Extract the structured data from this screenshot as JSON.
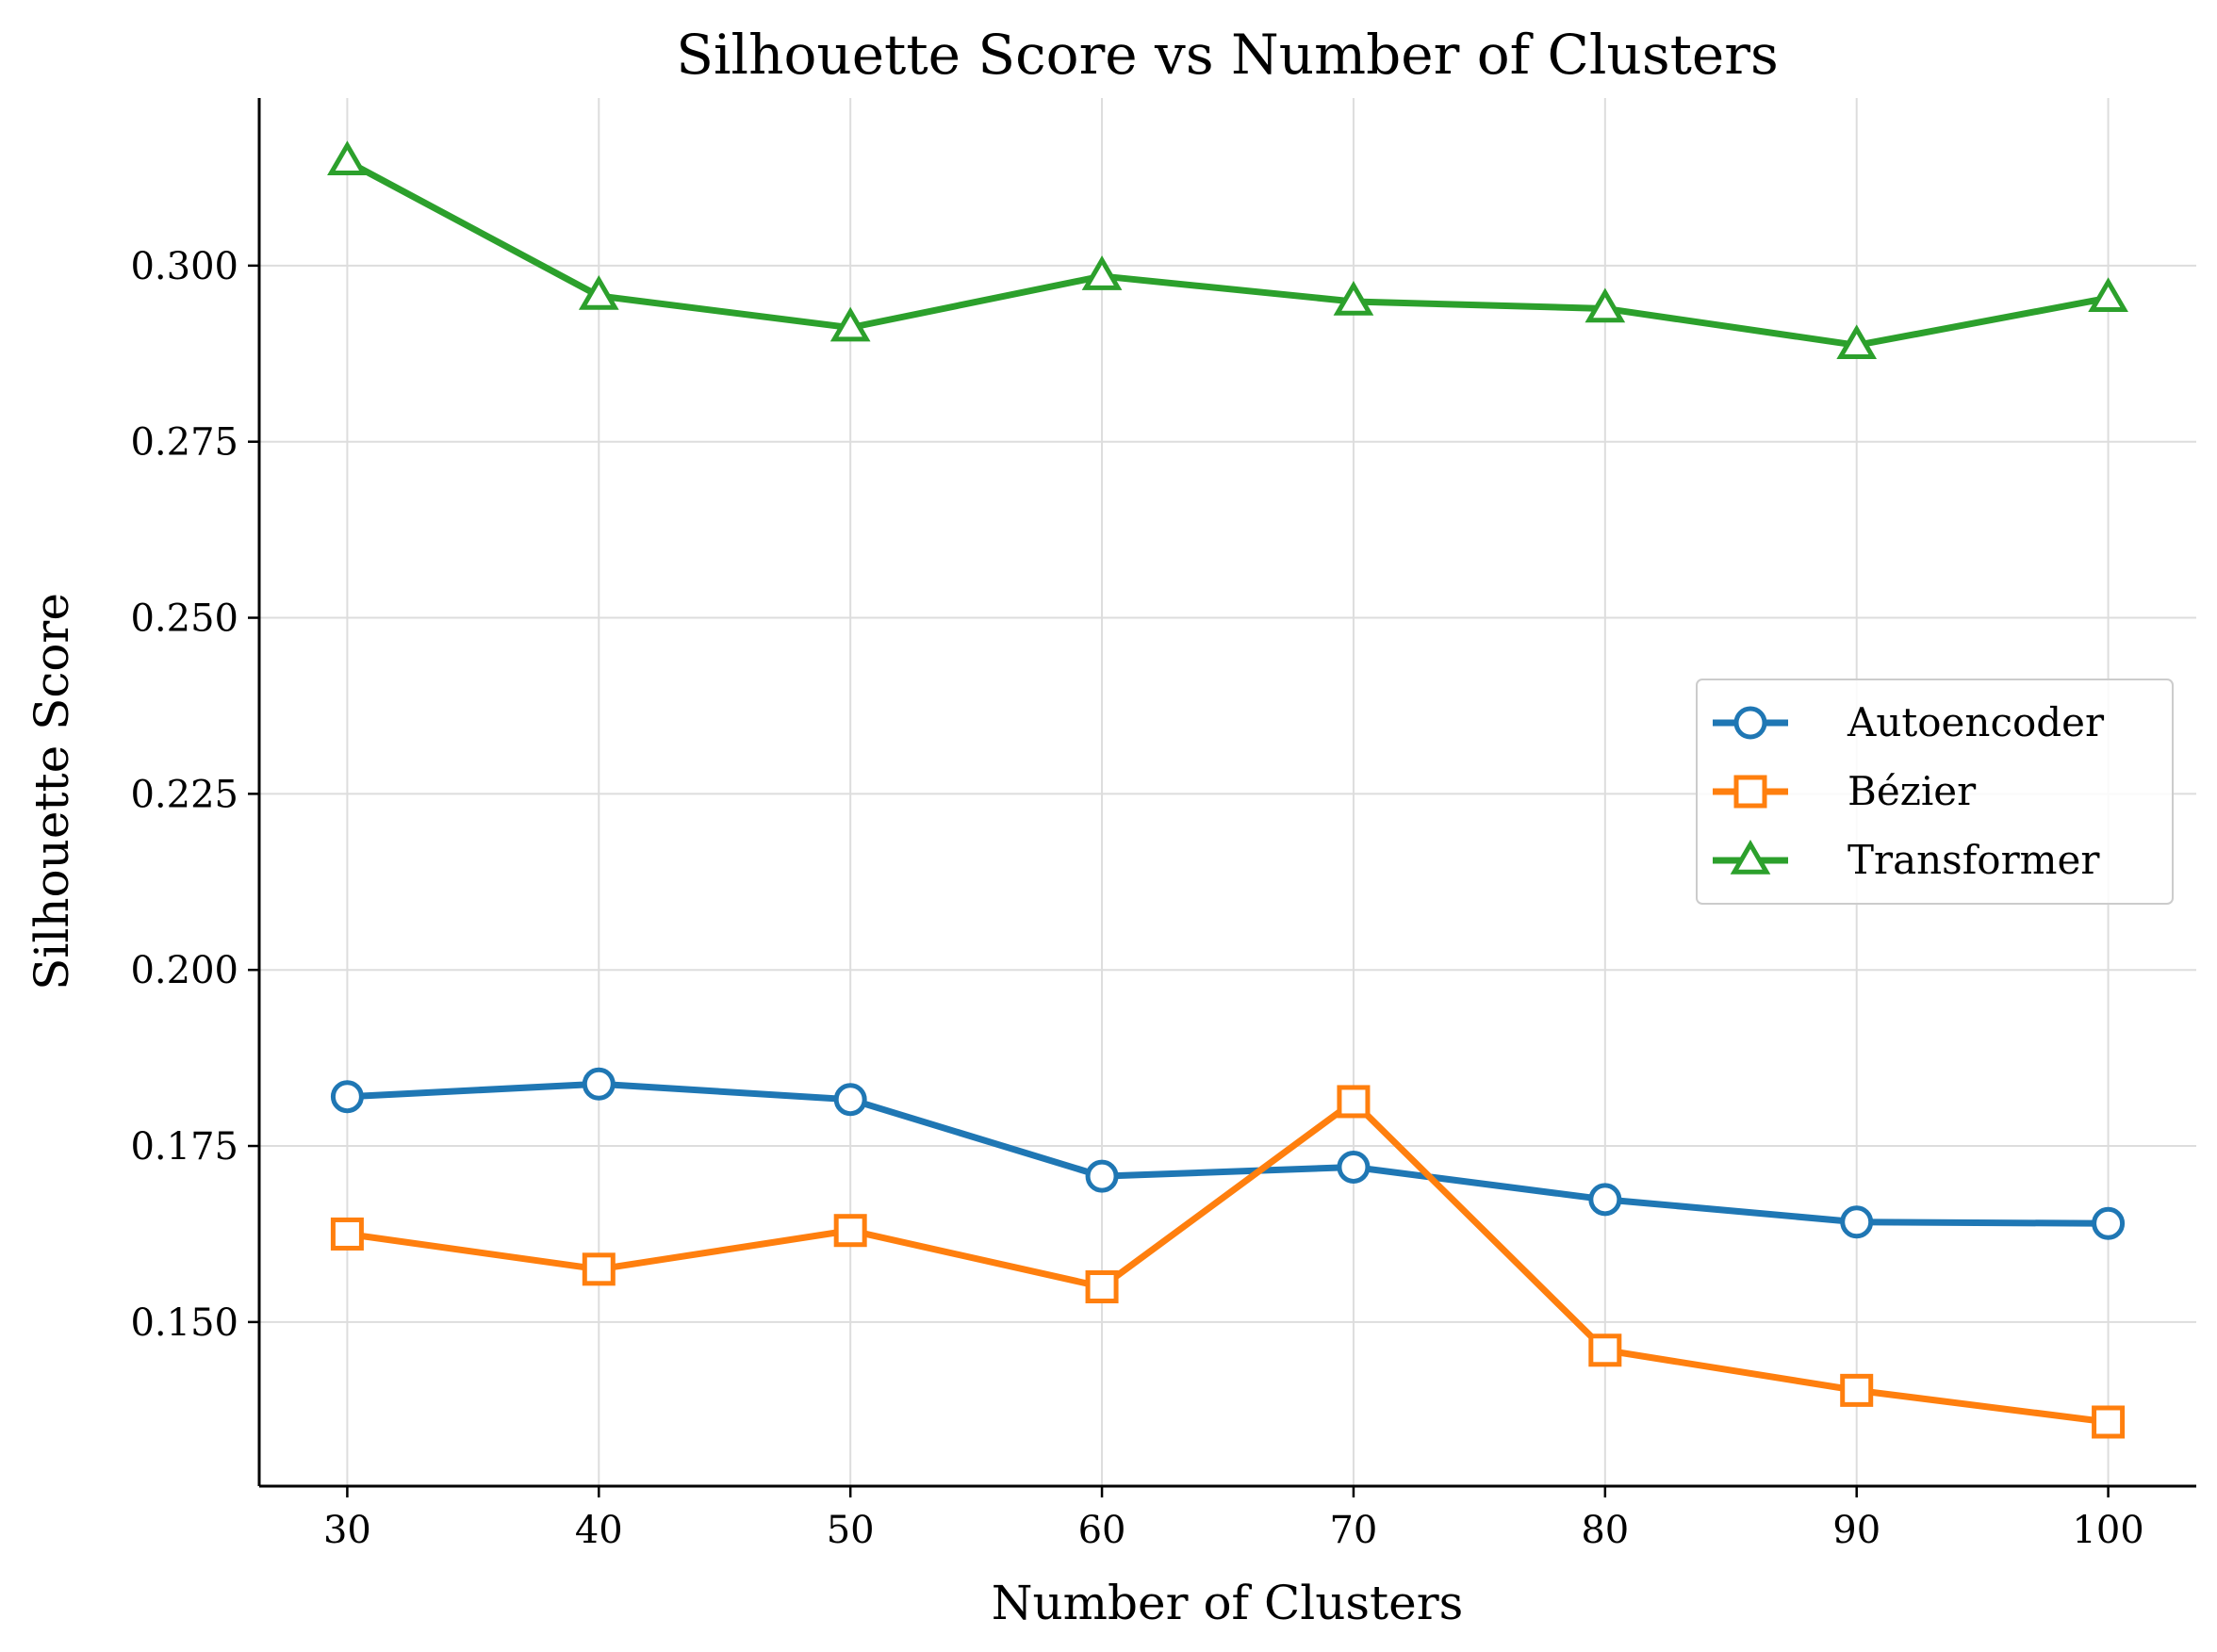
{
  "chart_data": {
    "type": "line",
    "title": "Silhouette Score vs Number of Clusters",
    "xlabel": "Number of Clusters",
    "ylabel": "Silhouette Score",
    "x": [
      30,
      40,
      50,
      60,
      70,
      80,
      90,
      100
    ],
    "xlim": [
      26.5,
      103.5
    ],
    "ylim": [
      0.1267,
      0.3238
    ],
    "x_ticks": [
      30,
      40,
      50,
      60,
      70,
      80,
      90,
      100
    ],
    "y_ticks": [
      0.15,
      0.175,
      0.2,
      0.225,
      0.25,
      0.275,
      0.3
    ],
    "y_tick_labels": [
      "0.150",
      "0.175",
      "0.200",
      "0.225",
      "0.250",
      "0.275",
      "0.300"
    ],
    "grid": true,
    "legend_position": "center-right",
    "series": [
      {
        "name": "Autoencoder",
        "color": "#1f77b4",
        "marker": "circle",
        "values": [
          0.182,
          0.1838,
          0.1816,
          0.1707,
          0.172,
          0.1674,
          0.1642,
          0.164
        ]
      },
      {
        "name": "Bézier",
        "color": "#ff7f0e",
        "marker": "square",
        "values": [
          0.1625,
          0.1575,
          0.163,
          0.155,
          0.1813,
          0.146,
          0.1403,
          0.1358
        ]
      },
      {
        "name": "Transformer",
        "color": "#2ca02c",
        "marker": "triangle",
        "values": [
          0.3148,
          0.2957,
          0.2912,
          0.2985,
          0.2949,
          0.2939,
          0.2887,
          0.2954
        ]
      }
    ]
  }
}
